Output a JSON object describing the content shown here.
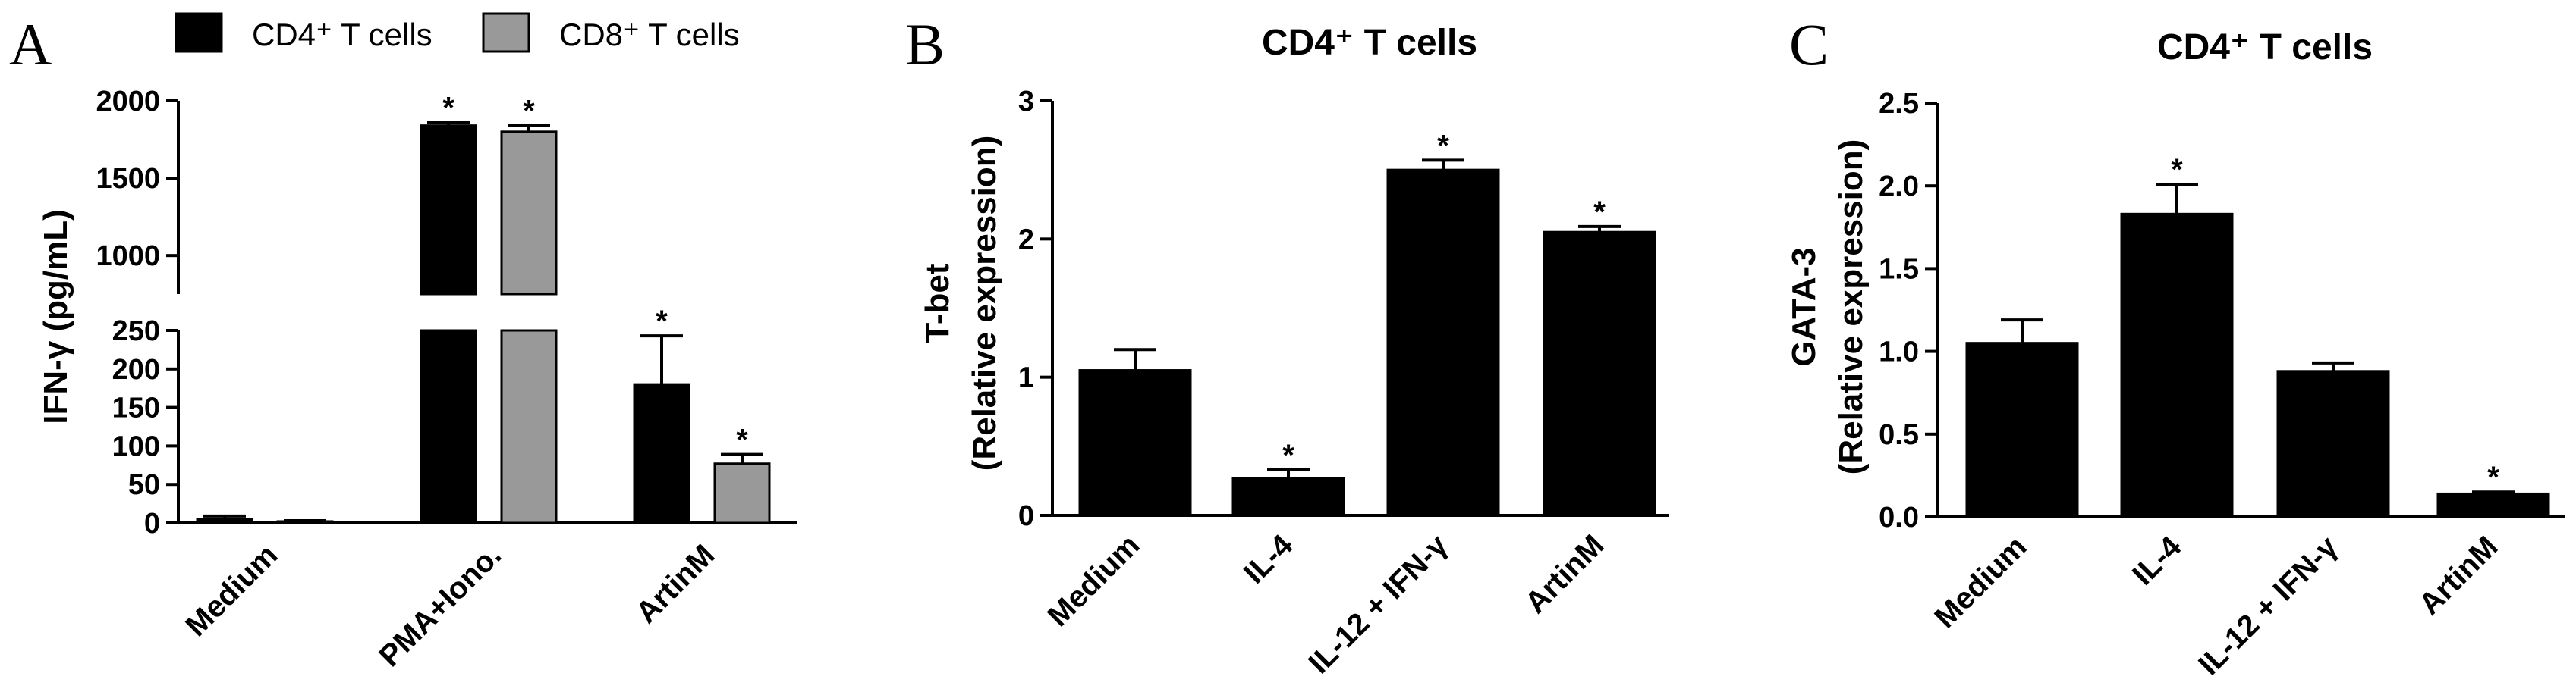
{
  "chart_data": [
    {
      "panel": "A",
      "type": "bar",
      "title": "",
      "ylabel": "IFN-γ (pg/mL)",
      "categories": [
        "Medium",
        "PMA+Iono.",
        "ArtinM"
      ],
      "series": [
        {
          "name": "CD4⁺ T cells",
          "color": "#000000",
          "values": [
            5,
            1840,
            180
          ],
          "errors": [
            4,
            20,
            63
          ],
          "significant": [
            false,
            true,
            true
          ]
        },
        {
          "name": "CD8⁺ T cells",
          "color": "#999999",
          "values": [
            2,
            1800,
            77
          ],
          "errors": [
            1,
            40,
            12
          ],
          "significant": [
            false,
            true,
            true
          ]
        }
      ],
      "y_axis_break": {
        "lower_range": [
          0,
          250
        ],
        "upper_range": [
          800,
          2000
        ]
      },
      "lower_ticks": [
        "0",
        "50",
        "100",
        "150",
        "200",
        "250"
      ],
      "upper_ticks": [
        "1000",
        "1500",
        "2000"
      ],
      "legend_placement": "top"
    },
    {
      "panel": "B",
      "type": "bar",
      "title": "CD4⁺ T cells",
      "ylabel_line1": "T-bet",
      "ylabel_line2": "(Relative expression)",
      "categories": [
        "Medium",
        "IL-4",
        "IL-12 + IFN-γ",
        "ArtinM"
      ],
      "values": [
        1.05,
        0.27,
        2.5,
        2.05
      ],
      "errors": [
        0.15,
        0.06,
        0.07,
        0.04
      ],
      "significant": [
        false,
        true,
        true,
        true
      ],
      "ylim": [
        0,
        3
      ],
      "ticks": [
        "0",
        "1",
        "2",
        "3"
      ]
    },
    {
      "panel": "C",
      "type": "bar",
      "title": "CD4⁺ T cells",
      "ylabel_line1": "GATA-3",
      "ylabel_line2": "(Relative expression)",
      "categories": [
        "Medium",
        "IL-4",
        "IL-12 + IFN-γ",
        "ArtinM"
      ],
      "values": [
        1.05,
        1.83,
        0.88,
        0.14
      ],
      "errors": [
        0.14,
        0.18,
        0.05,
        0.01
      ],
      "significant": [
        false,
        true,
        false,
        true
      ],
      "ylim": [
        0,
        2.5
      ],
      "ticks": [
        "0.0",
        "0.5",
        "1.0",
        "1.5",
        "2.0",
        "2.5"
      ]
    }
  ],
  "panel_letters": [
    "A",
    "B",
    "C"
  ],
  "significance_marker": "*"
}
